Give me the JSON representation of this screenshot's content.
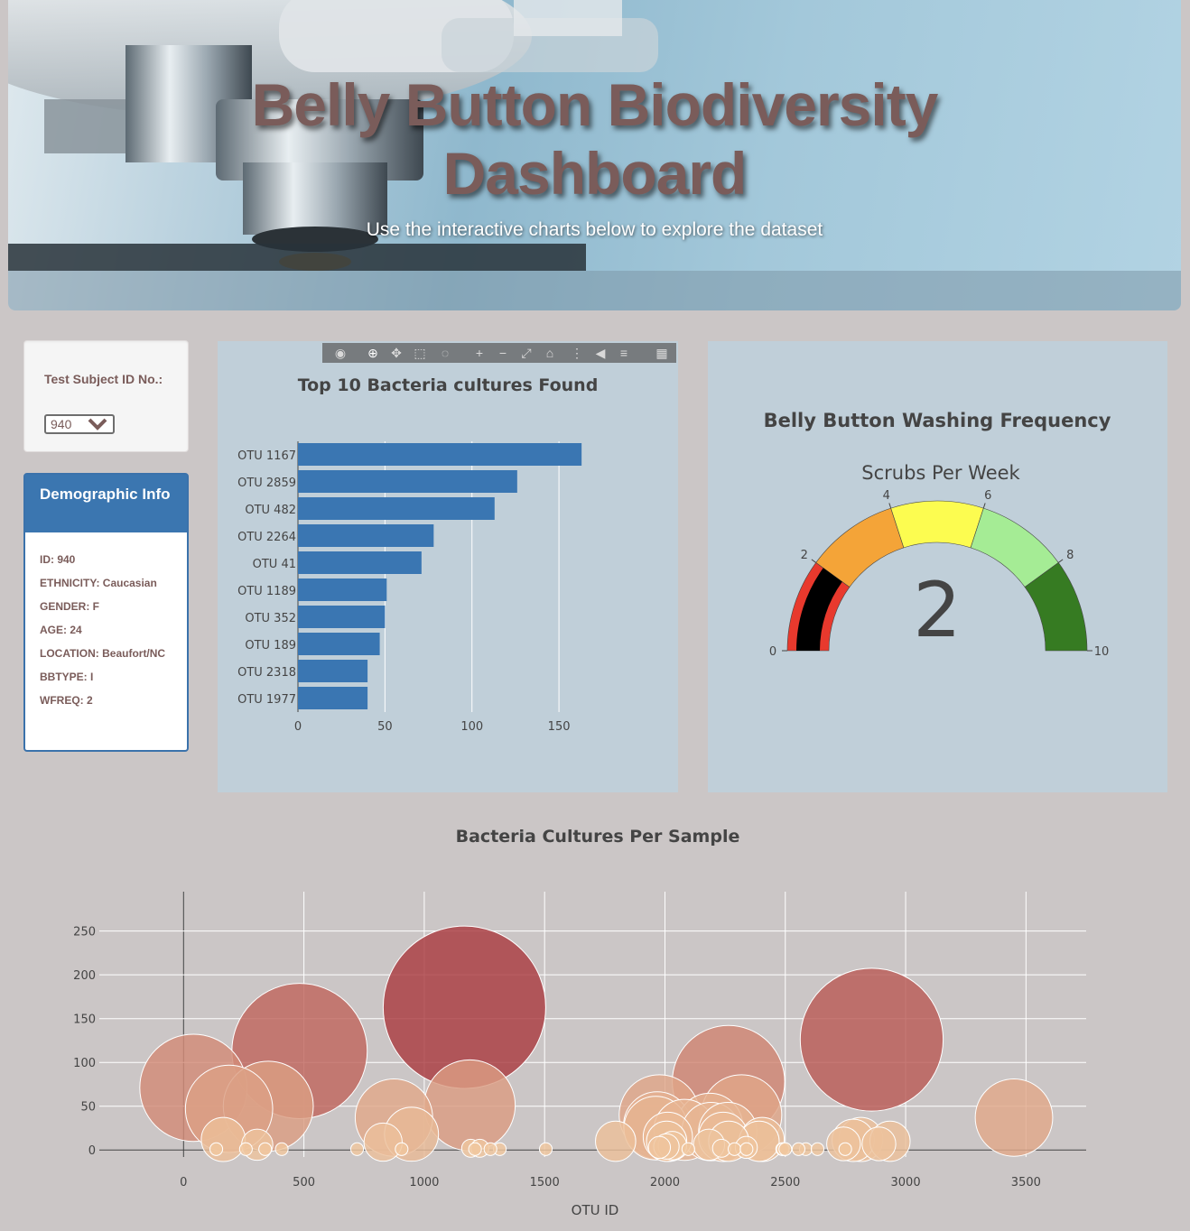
{
  "header": {
    "title_line1": "Belly Button Biodiversity",
    "title_line2": "Dashboard",
    "subtitle": "Use the interactive charts below to explore the dataset"
  },
  "selector": {
    "label": "Test Subject ID No.:",
    "selected": "940"
  },
  "demographics": {
    "heading": "Demographic Info",
    "items": [
      "ID: 940",
      "ETHNICITY: Caucasian",
      "GENDER: F",
      "AGE: 24",
      "LOCATION: Beaufort/NC",
      "BBTYPE: I",
      "WFREQ: 2"
    ]
  },
  "modebar": {
    "icons": [
      "camera-icon",
      "zoom-icon",
      "pan-icon",
      "box-select-icon",
      "lasso-icon",
      "zoom-in-icon",
      "zoom-out-icon",
      "autoscale-icon",
      "reset-axes-icon",
      "spike-lines-icon",
      "hover-closest-icon",
      "hover-compare-icon",
      "plotly-logo-icon"
    ]
  },
  "colors": {
    "bar": "#3a76b2",
    "panel_bg": "#c0cfd9",
    "page_bg": "#cbc6c6",
    "accent_text": "#7a5c5a"
  },
  "chart_data": [
    {
      "type": "bar",
      "orientation": "horizontal",
      "title": "Top 10 Bacteria cultures Found",
      "categories": [
        "OTU 1167",
        "OTU 2859",
        "OTU 482",
        "OTU 2264",
        "OTU 41",
        "OTU 1189",
        "OTU 352",
        "OTU 189",
        "OTU 2318",
        "OTU 1977"
      ],
      "values": [
        163,
        126,
        113,
        78,
        71,
        51,
        50,
        47,
        40,
        40
      ],
      "xlim": [
        0,
        165
      ],
      "xticks": [
        0,
        50,
        100,
        150
      ],
      "grid": true
    },
    {
      "type": "gauge",
      "title": "Belly Button Washing Frequency",
      "subtitle": "Scrubs Per Week",
      "value": 2,
      "range": [
        0,
        10
      ],
      "ticks": [
        0,
        2,
        4,
        6,
        8,
        10
      ],
      "steps": [
        {
          "range": [
            0,
            2
          ],
          "color": "#e8392d"
        },
        {
          "range": [
            2,
            4
          ],
          "color": "#f4a438"
        },
        {
          "range": [
            4,
            6
          ],
          "color": "#fcfc50"
        },
        {
          "range": [
            6,
            8
          ],
          "color": "#a5ec95"
        },
        {
          "range": [
            8,
            10
          ],
          "color": "#367b22"
        }
      ],
      "bar_color": "#000000"
    },
    {
      "type": "scatter",
      "title": "Bacteria Cultures Per Sample",
      "xlabel": "OTU ID",
      "ylabel": "",
      "xlim": [
        -350,
        3750
      ],
      "ylim": [
        -8,
        295
      ],
      "xticks": [
        0,
        500,
        1000,
        1500,
        2000,
        2500,
        3000,
        3500
      ],
      "yticks": [
        0,
        50,
        100,
        150,
        200,
        250
      ],
      "grid": true,
      "points": [
        {
          "x": 1167,
          "y": 163
        },
        {
          "x": 2859,
          "y": 126
        },
        {
          "x": 482,
          "y": 113
        },
        {
          "x": 2264,
          "y": 78
        },
        {
          "x": 41,
          "y": 71
        },
        {
          "x": 1189,
          "y": 51
        },
        {
          "x": 352,
          "y": 50
        },
        {
          "x": 189,
          "y": 47
        },
        {
          "x": 2318,
          "y": 40
        },
        {
          "x": 1977,
          "y": 40
        },
        {
          "x": 3450,
          "y": 37
        },
        {
          "x": 874,
          "y": 37
        },
        {
          "x": 1968,
          "y": 28
        },
        {
          "x": 2186,
          "y": 27
        },
        {
          "x": 2081,
          "y": 23
        },
        {
          "x": 2191,
          "y": 21
        },
        {
          "x": 1962,
          "y": 25
        },
        {
          "x": 2261,
          "y": 21
        },
        {
          "x": 947,
          "y": 18
        },
        {
          "x": 2012,
          "y": 15
        },
        {
          "x": 2242,
          "y": 15
        },
        {
          "x": 165,
          "y": 12
        },
        {
          "x": 2404,
          "y": 12
        },
        {
          "x": 2814,
          "y": 12
        },
        {
          "x": 2782,
          "y": 11
        },
        {
          "x": 2391,
          "y": 10
        },
        {
          "x": 2007,
          "y": 10
        },
        {
          "x": 2265,
          "y": 10
        },
        {
          "x": 1795,
          "y": 10
        },
        {
          "x": 2935,
          "y": 10
        },
        {
          "x": 829,
          "y": 9
        },
        {
          "x": 2889,
          "y": 7
        },
        {
          "x": 2742,
          "y": 7
        },
        {
          "x": 2183,
          "y": 6
        },
        {
          "x": 306,
          "y": 6
        },
        {
          "x": 2031,
          "y": 5
        },
        {
          "x": 2006,
          "y": 4
        },
        {
          "x": 1977,
          "y": 3
        },
        {
          "x": 2338,
          "y": 3
        },
        {
          "x": 2235,
          "y": 2
        },
        {
          "x": 1193,
          "y": 2
        },
        {
          "x": 1231,
          "y": 2
        },
        {
          "x": 1314,
          "y": 1
        },
        {
          "x": 1275,
          "y": 1
        },
        {
          "x": 1505,
          "y": 1
        },
        {
          "x": 2749,
          "y": 1
        },
        {
          "x": 2097,
          "y": 1
        },
        {
          "x": 1211,
          "y": 1
        },
        {
          "x": 2289,
          "y": 1
        },
        {
          "x": 2339,
          "y": 1
        },
        {
          "x": 2487,
          "y": 1
        },
        {
          "x": 2585,
          "y": 1
        },
        {
          "x": 2634,
          "y": 1
        },
        {
          "x": 721,
          "y": 1
        },
        {
          "x": 408,
          "y": 1
        },
        {
          "x": 339,
          "y": 1
        },
        {
          "x": 259,
          "y": 1
        },
        {
          "x": 136,
          "y": 1
        },
        {
          "x": 2490,
          "y": 1
        },
        {
          "x": 2555,
          "y": 1
        },
        {
          "x": 906,
          "y": 1
        },
        {
          "x": 2500,
          "y": 1
        }
      ]
    }
  ]
}
